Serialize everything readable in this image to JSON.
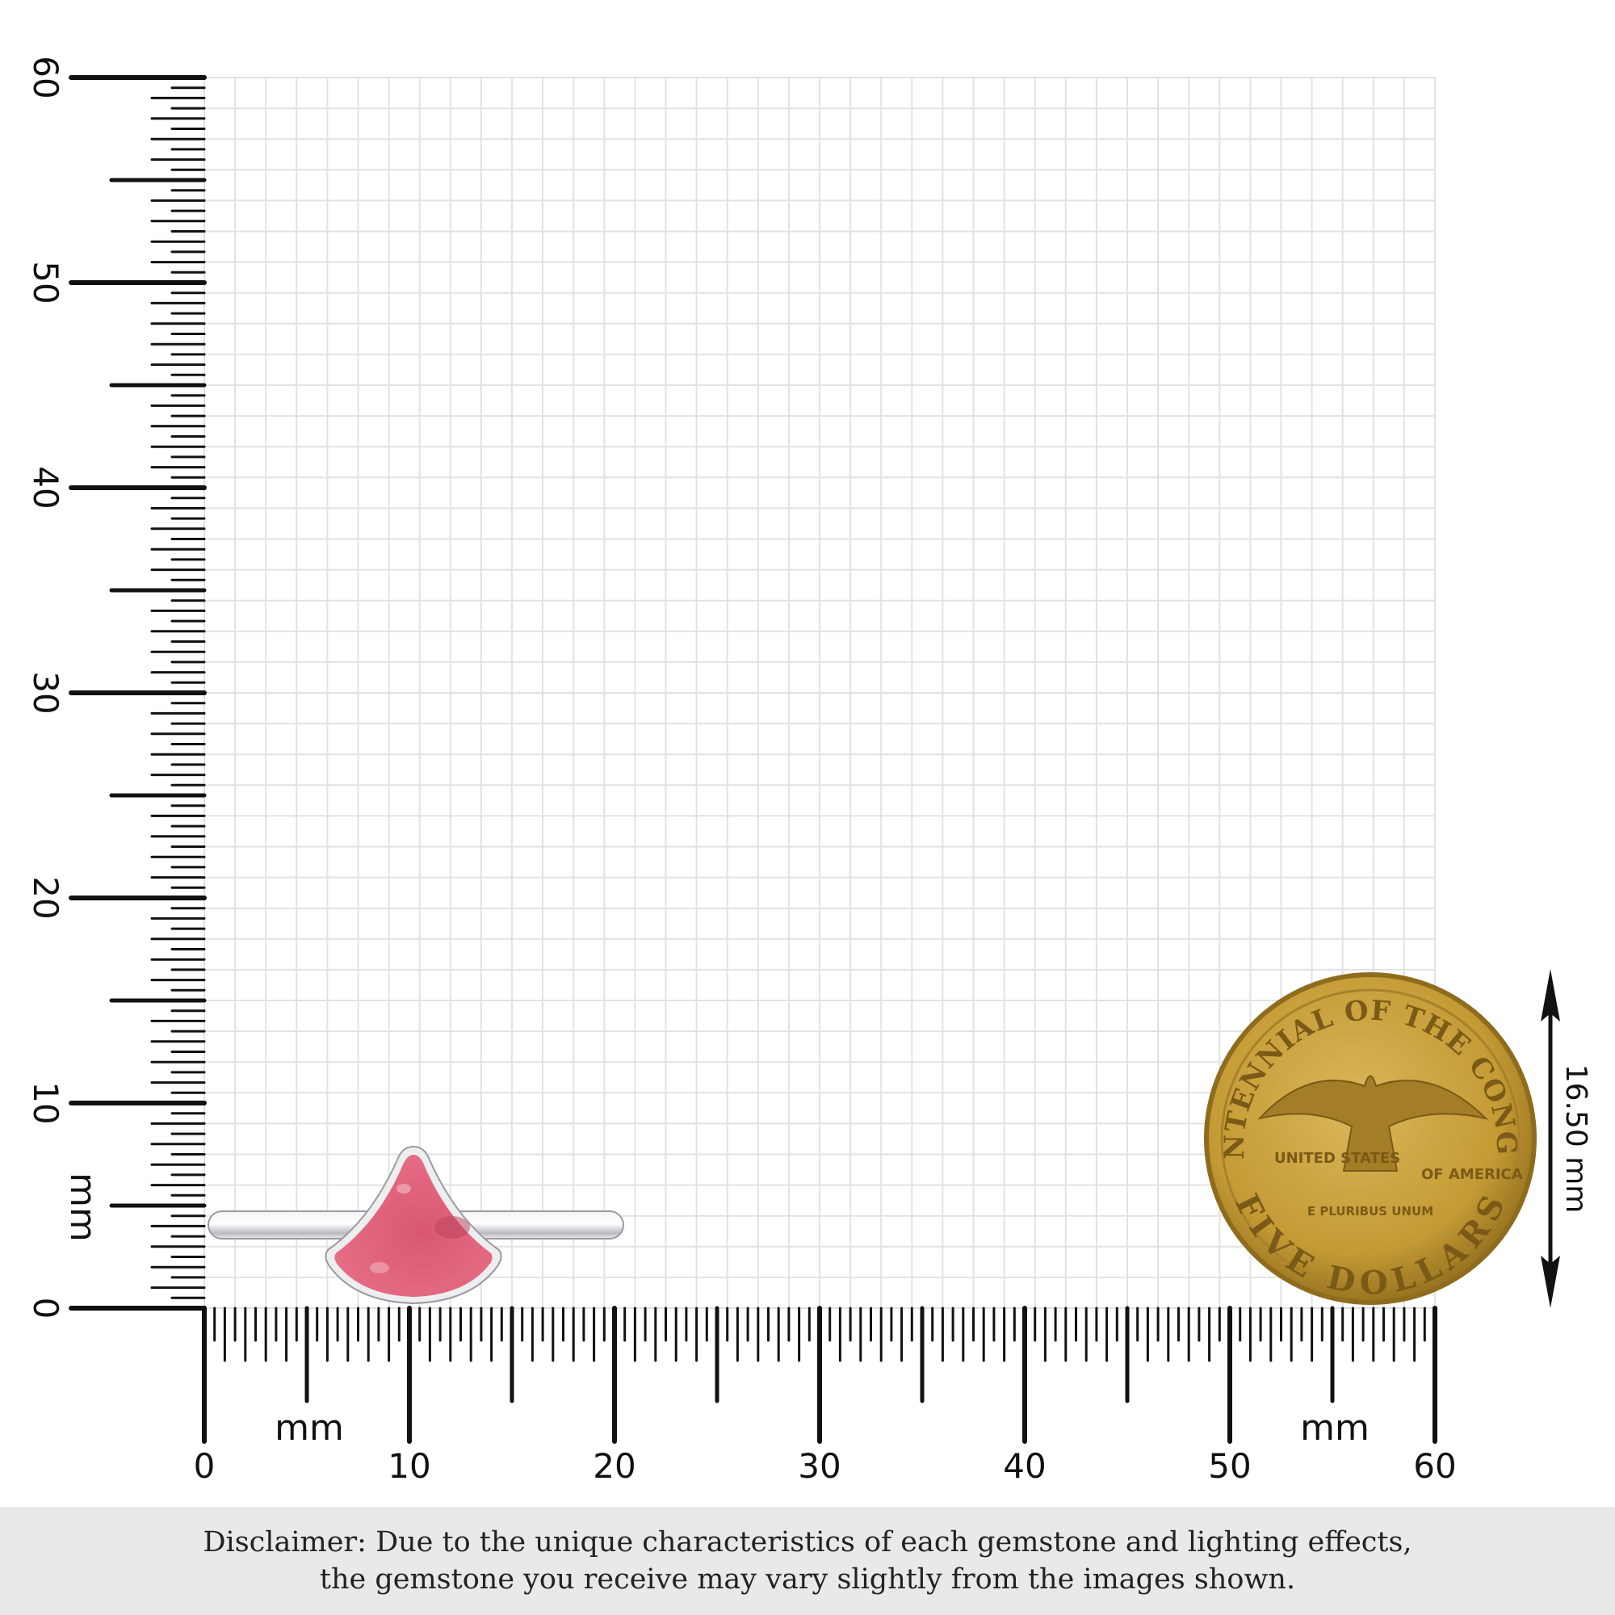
{
  "rulers": {
    "vertical_labels": [
      "0",
      "10",
      "20",
      "30",
      "40",
      "50",
      "60"
    ],
    "horizontal_labels": [
      "0",
      "10",
      "20",
      "30",
      "40",
      "50",
      "60"
    ],
    "unit_left": "mm",
    "unit_bottom_left": "mm",
    "unit_bottom_right": "mm"
  },
  "coin": {
    "top_text": "BICENTENNIAL OF THE CONGRESS",
    "left_text": "UNITED STATES",
    "right_text": "OF AMERICA",
    "motto": "E PLURIBUS UNUM",
    "bottom_text": "FIVE DOLLARS",
    "color": "#c9a23c"
  },
  "dimension": {
    "label": "16.50 mm"
  },
  "gem": {
    "color": "#e0607a",
    "metal": "#d8d8dc"
  },
  "disclaimer": {
    "line1": "Disclaimer: Due to the unique characteristics of each gemstone and lighting effects,",
    "line2": "the gemstone you receive may vary slightly from the images shown."
  }
}
